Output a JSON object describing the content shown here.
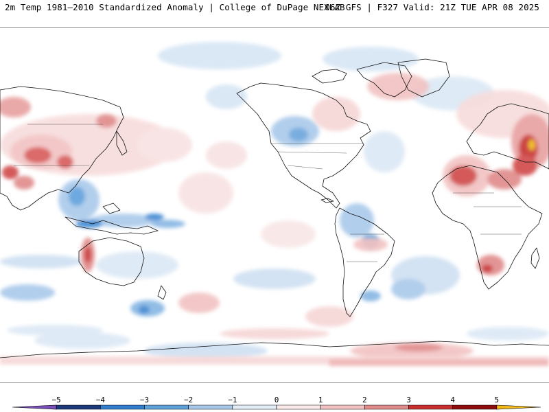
{
  "header": {
    "title_left": "2m Temp 1981–2010 Standardized Anomaly | College of DuPage NEXLAB",
    "title_right": "06Z GFS | F327 Valid: 21Z TUE APR 08 2025"
  },
  "map": {
    "projection": "global equirectangular, Pacific-centered",
    "land_outline_color": "#111111",
    "anomaly_palette": {
      "-5": "#7a4fb8",
      "-4": "#1c3a7a",
      "-3": "#2f7fce",
      "-2": "#86b6e3",
      "-1": "#cfe0f2",
      "0": "#ffffff",
      "1": "#f6d6d6",
      "2": "#e8a0a0",
      "3": "#d04848",
      "4": "#a81818",
      "5": "#7a0808",
      "6": "#f0b818"
    }
  },
  "colorbar": {
    "labels": [
      "−5",
      "−4",
      "−3",
      "−2",
      "−1",
      "0",
      "1",
      "2",
      "3",
      "4",
      "5"
    ],
    "min": -6,
    "max": 6,
    "segments": [
      {
        "from": -6,
        "to": -5,
        "color": "#7a4fb8"
      },
      {
        "from": -5,
        "to": -4,
        "color": "#1c3a7a"
      },
      {
        "from": -4,
        "to": -3,
        "color": "#2f7fce"
      },
      {
        "from": -3,
        "to": -2,
        "color": "#5ea0dc"
      },
      {
        "from": -2,
        "to": -1,
        "color": "#a9c9ea"
      },
      {
        "from": -1,
        "to": 0,
        "color": "#e3edf8"
      },
      {
        "from": 0,
        "to": 1,
        "color": "#fbeaea"
      },
      {
        "from": 1,
        "to": 2,
        "color": "#f2c2c2"
      },
      {
        "from": 2,
        "to": 3,
        "color": "#e08a8a"
      },
      {
        "from": 3,
        "to": 4,
        "color": "#c83030"
      },
      {
        "from": 4,
        "to": 5,
        "color": "#8e0c0c"
      },
      {
        "from": 5,
        "to": 6,
        "color": "#f0b818"
      }
    ]
  }
}
